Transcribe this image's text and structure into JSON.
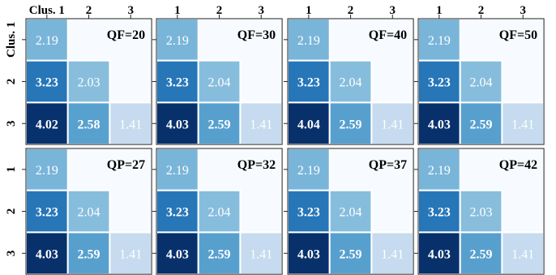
{
  "chart_data": {
    "type": "heatmap",
    "colormap": "Blues",
    "value_range": [
      1.41,
      4.04
    ],
    "empty_cell_color": "#f7fbff",
    "grid_line_color": "#ffffff",
    "text_color": "#ffffff",
    "col_labels": [
      [
        "Clus. 1",
        "2",
        "3"
      ],
      [
        "1",
        "2",
        "3"
      ],
      [
        "1",
        "2",
        "3"
      ],
      [
        "1",
        "2",
        "3"
      ]
    ],
    "row_labels_top": [
      "Clus. 1",
      "2",
      "3"
    ],
    "row_labels_bottom": [
      "1",
      "2",
      "3"
    ],
    "panels": [
      {
        "label": "QF=20",
        "cells": [
          [
            2.19,
            null,
            null
          ],
          [
            3.23,
            2.03,
            null
          ],
          [
            4.02,
            2.58,
            1.41
          ]
        ]
      },
      {
        "label": "QF=30",
        "cells": [
          [
            2.19,
            null,
            null
          ],
          [
            3.23,
            2.04,
            null
          ],
          [
            4.03,
            2.59,
            1.41
          ]
        ]
      },
      {
        "label": "QF=40",
        "cells": [
          [
            2.19,
            null,
            null
          ],
          [
            3.23,
            2.04,
            null
          ],
          [
            4.04,
            2.59,
            1.41
          ]
        ]
      },
      {
        "label": "QF=50",
        "cells": [
          [
            2.19,
            null,
            null
          ],
          [
            3.23,
            2.04,
            null
          ],
          [
            4.03,
            2.59,
            1.41
          ]
        ]
      },
      {
        "label": "QP=27",
        "cells": [
          [
            2.19,
            null,
            null
          ],
          [
            3.23,
            2.04,
            null
          ],
          [
            4.03,
            2.59,
            1.41
          ]
        ]
      },
      {
        "label": "QP=32",
        "cells": [
          [
            2.19,
            null,
            null
          ],
          [
            3.23,
            2.04,
            null
          ],
          [
            4.03,
            2.59,
            1.41
          ]
        ]
      },
      {
        "label": "QP=37",
        "cells": [
          [
            2.19,
            null,
            null
          ],
          [
            3.23,
            2.04,
            null
          ],
          [
            4.03,
            2.59,
            1.41
          ]
        ]
      },
      {
        "label": "QP=42",
        "cells": [
          [
            2.19,
            null,
            null
          ],
          [
            3.23,
            2.03,
            null
          ],
          [
            4.03,
            2.59,
            1.41
          ]
        ]
      }
    ]
  }
}
